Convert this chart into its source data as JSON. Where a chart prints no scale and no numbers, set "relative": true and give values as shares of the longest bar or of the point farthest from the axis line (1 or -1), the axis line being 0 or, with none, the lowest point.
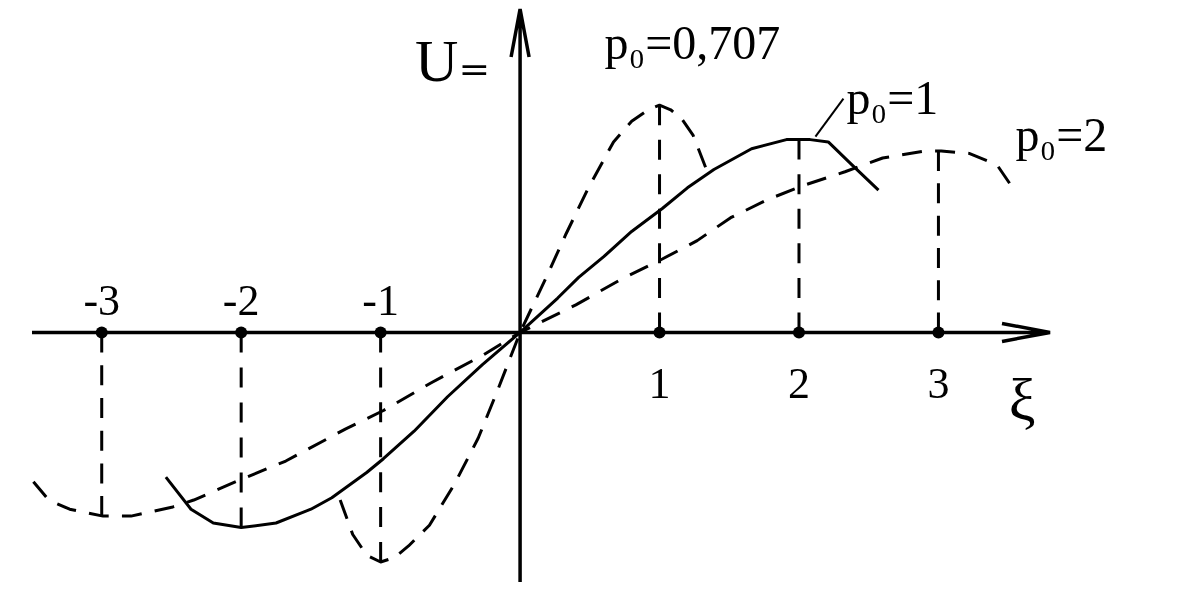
{
  "chart_data": {
    "type": "line",
    "relative": true,
    "xlabel": "ξ",
    "ylabel": "U₌",
    "xlim": [
      -3.5,
      3.8
    ],
    "xticks": [
      1,
      2,
      3
    ],
    "x2lim": [
      -3.5,
      3.8
    ],
    "x2ticks": [
      -3,
      -2,
      -1
    ],
    "series": [
      {
        "name": "p₀=0,707",
        "color": "#000000",
        "line_style": "dashed",
        "x": [
          -1.29,
          -1.2,
          -1.1,
          -1.0,
          -0.9,
          -0.8,
          -0.65,
          -0.47,
          -0.3,
          -0.16,
          0,
          0.18,
          0.33,
          0.49,
          0.67,
          0.8,
          0.92,
          1.0,
          1.08,
          1.16,
          1.24,
          1.33
        ],
        "values": [
          -0.73,
          -0.88,
          -0.97,
          -1.0,
          -0.98,
          -0.93,
          -0.84,
          -0.66,
          -0.46,
          -0.25,
          0,
          0.23,
          0.43,
          0.63,
          0.83,
          0.92,
          0.97,
          0.99,
          0.97,
          0.93,
          0.86,
          0.72
        ]
      },
      {
        "name": "p₀=1",
        "color": "#000000",
        "line_style": "solid",
        "x": [
          -2.54,
          -2.36,
          -2.2,
          -2.0,
          -1.75,
          -1.5,
          -1.35,
          -1.1,
          -0.98,
          -0.76,
          -0.52,
          -0.27,
          0,
          0.27,
          0.42,
          0.6,
          0.8,
          1.02,
          1.2,
          1.39,
          1.66,
          1.91,
          2.08,
          2.21,
          2.38,
          2.57
        ],
        "values": [
          -0.63,
          -0.77,
          -0.83,
          -0.85,
          -0.83,
          -0.77,
          -0.72,
          -0.61,
          -0.55,
          -0.43,
          -0.28,
          -0.14,
          0,
          0.15,
          0.24,
          0.33,
          0.44,
          0.54,
          0.63,
          0.71,
          0.8,
          0.84,
          0.84,
          0.83,
          0.73,
          0.62
        ]
      },
      {
        "name": "p₀=2",
        "color": "#000000",
        "line_style": "dashed",
        "x": [
          -3.49,
          -3.38,
          -3.23,
          -2.99,
          -2.79,
          -2.49,
          -2.34,
          -2.0,
          -1.68,
          -1.25,
          -0.98,
          -0.64,
          -0.27,
          0,
          0.4,
          0.72,
          1.02,
          1.27,
          1.51,
          1.78,
          2.03,
          2.33,
          2.6,
          2.9,
          3.02,
          3.22,
          3.42,
          3.51
        ],
        "values": [
          -0.65,
          -0.73,
          -0.77,
          -0.8,
          -0.8,
          -0.76,
          -0.73,
          -0.64,
          -0.56,
          -0.42,
          -0.34,
          -0.22,
          -0.1,
          0,
          0.12,
          0.23,
          0.32,
          0.4,
          0.5,
          0.58,
          0.64,
          0.7,
          0.76,
          0.79,
          0.79,
          0.78,
          0.73,
          0.65
        ]
      },
      {
        "color": "#000000",
        "line_style": "dashed",
        "x": [
          -3,
          -3
        ],
        "values": [
          0,
          -0.8
        ]
      },
      {
        "color": "#000000",
        "line_style": "dashed",
        "x": [
          -2,
          -2
        ],
        "values": [
          0,
          -0.85
        ]
      },
      {
        "color": "#000000",
        "line_style": "dashed",
        "x": [
          -1,
          -1
        ],
        "values": [
          0,
          -1.0
        ]
      },
      {
        "color": "#000000",
        "line_style": "dashed",
        "x": [
          1,
          1
        ],
        "values": [
          0,
          0.99
        ]
      },
      {
        "color": "#000000",
        "line_style": "dashed",
        "x": [
          2,
          2
        ],
        "values": [
          0,
          0.84
        ]
      },
      {
        "color": "#000000",
        "line_style": "dashed",
        "x": [
          3,
          3
        ],
        "values": [
          0,
          0.79
        ]
      }
    ]
  }
}
